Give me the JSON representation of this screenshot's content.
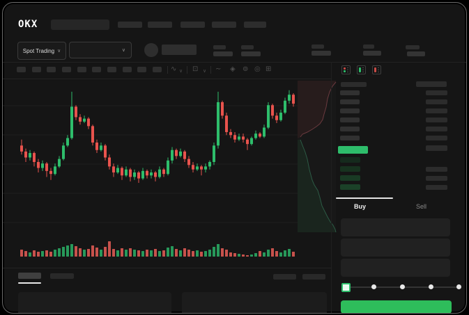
{
  "window": {
    "bg": "#000000",
    "app_bg": "#151515",
    "frame_border": "#6a6a6a"
  },
  "colors": {
    "candle_green": "#2ebd6b",
    "candle_red": "#e8534d",
    "volume_green": "#27995a",
    "volume_red": "#c7524c",
    "depth_ask_line": "#6b3a3f",
    "depth_bid_line": "#2c5a45",
    "price_highlight_green": "#2ebd6b",
    "buy_button_green": "#2ebd5b",
    "active_text": "#f0f0f0",
    "dim_text": "#8a8a8a"
  },
  "header": {
    "logo_text": "OKX",
    "nav_placeholder_count": 5,
    "has_search_placeholder": true
  },
  "market_bar": {
    "mode_selector_label": "Spot Trading",
    "mode_selector_chevron": "∨",
    "pair_selector_chevron": "∨",
    "stat_pair_count": 5
  },
  "toolbar": {
    "interval_placeholder_count": 10,
    "icons": [
      {
        "name": "candle-style-icon",
        "glyph": "∿"
      },
      {
        "name": "chevron-down-icon",
        "glyph": "∨"
      },
      {
        "name": "indicator-icon",
        "glyph": "⊡"
      },
      {
        "name": "chevron-down-icon",
        "glyph": "∨"
      },
      {
        "name": "line-tool-icon",
        "glyph": "∼"
      },
      {
        "name": "compare-icon",
        "glyph": "◈"
      },
      {
        "name": "camera-icon",
        "glyph": "⊚"
      },
      {
        "name": "settings-icon",
        "glyph": "◎"
      },
      {
        "name": "fullscreen-icon",
        "glyph": "⊞"
      }
    ]
  },
  "order_book": {
    "view_mode_icons": [
      "split-book-view",
      "bids-only-view",
      "asks-only-view"
    ],
    "has_header_row": true,
    "ask_level_count": 6,
    "bid_level_count": 4,
    "bid_bar_colors": [
      "#152a1d",
      "#17321f",
      "#193a24",
      "#1b4128"
    ],
    "current_price_highlighted": true
  },
  "trade_panel": {
    "tabs": [
      {
        "label": "Buy",
        "active": true
      },
      {
        "label": "Sell",
        "active": false
      }
    ],
    "field_count": 3,
    "slider": {
      "stop_count": 5,
      "active_stop_index": 0
    },
    "submit_button_label": ""
  },
  "bottom_section": {
    "tab_placeholder_count": 2,
    "active_tab_index": 0,
    "right_placeholder_count": 2,
    "panel_count": 2
  },
  "chart_data": {
    "type": "candlestick",
    "title": "",
    "xlabel": "",
    "ylabel": "",
    "note": "wireframe trading mockup; no axis tick labels visible; OHLC normalized 0-100 of pane height",
    "ylim": [
      0,
      100
    ],
    "grid": true,
    "candles_ohcl_as_o_c_h_l": [
      [
        58,
        54,
        62,
        52
      ],
      [
        54,
        50,
        56,
        47
      ],
      [
        50,
        53,
        55,
        48
      ],
      [
        53,
        47,
        54,
        44
      ],
      [
        47,
        43,
        49,
        40
      ],
      [
        43,
        46,
        48,
        41
      ],
      [
        46,
        41,
        47,
        37
      ],
      [
        41,
        39,
        43,
        35
      ],
      [
        39,
        44,
        46,
        38
      ],
      [
        44,
        49,
        51,
        43
      ],
      [
        49,
        58,
        60,
        48
      ],
      [
        58,
        63,
        65,
        57
      ],
      [
        63,
        84,
        94,
        62
      ],
      [
        84,
        77,
        85,
        75
      ],
      [
        77,
        74,
        79,
        72
      ],
      [
        74,
        76,
        78,
        73
      ],
      [
        76,
        71,
        77,
        69
      ],
      [
        71,
        60,
        72,
        58
      ],
      [
        60,
        55,
        62,
        53
      ],
      [
        55,
        58,
        60,
        54
      ],
      [
        58,
        50,
        59,
        48
      ],
      [
        50,
        44,
        52,
        42
      ],
      [
        44,
        40,
        46,
        37
      ],
      [
        40,
        43,
        45,
        39
      ],
      [
        43,
        38,
        44,
        35
      ],
      [
        38,
        42,
        44,
        37
      ],
      [
        42,
        37,
        43,
        34
      ],
      [
        37,
        40,
        42,
        35
      ],
      [
        40,
        36,
        41,
        33
      ],
      [
        36,
        41,
        43,
        35
      ],
      [
        41,
        38,
        42,
        36
      ],
      [
        38,
        40,
        42,
        36
      ],
      [
        40,
        37,
        41,
        34
      ],
      [
        37,
        42,
        44,
        36
      ],
      [
        42,
        39,
        43,
        37
      ],
      [
        39,
        48,
        50,
        38
      ],
      [
        48,
        55,
        57,
        46
      ],
      [
        55,
        51,
        56,
        49
      ],
      [
        51,
        54,
        56,
        50
      ],
      [
        54,
        49,
        55,
        47
      ],
      [
        49,
        45,
        51,
        43
      ],
      [
        45,
        42,
        47,
        40
      ],
      [
        42,
        44,
        46,
        41
      ],
      [
        44,
        42,
        45,
        38
      ],
      [
        42,
        44,
        46,
        40
      ],
      [
        44,
        47,
        48,
        42
      ],
      [
        47,
        58,
        60,
        45
      ],
      [
        58,
        87,
        94,
        56
      ],
      [
        87,
        78,
        88,
        76
      ],
      [
        78,
        67,
        80,
        65
      ],
      [
        67,
        65,
        69,
        63
      ],
      [
        65,
        62,
        67,
        60
      ],
      [
        62,
        64,
        66,
        61
      ],
      [
        64,
        62,
        66,
        60
      ],
      [
        62,
        59,
        63,
        55
      ],
      [
        59,
        63,
        64,
        58
      ],
      [
        63,
        66,
        68,
        62
      ],
      [
        66,
        64,
        67,
        63
      ],
      [
        64,
        70,
        72,
        63
      ],
      [
        70,
        85,
        87,
        69
      ],
      [
        85,
        78,
        86,
        76
      ],
      [
        78,
        75,
        80,
        73
      ],
      [
        75,
        80,
        82,
        74
      ],
      [
        80,
        88,
        90,
        79
      ],
      [
        88,
        92,
        95,
        86
      ],
      [
        92,
        86,
        93,
        84
      ]
    ],
    "volume": [
      10,
      8,
      6,
      9,
      7,
      8,
      9,
      7,
      10,
      12,
      14,
      16,
      18,
      15,
      12,
      10,
      11,
      16,
      13,
      10,
      14,
      22,
      11,
      9,
      12,
      10,
      12,
      10,
      9,
      8,
      10,
      9,
      11,
      8,
      9,
      13,
      15,
      11,
      9,
      12,
      10,
      8,
      9,
      7,
      8,
      10,
      14,
      18,
      12,
      10,
      6,
      5,
      4,
      3,
      2,
      3,
      5,
      8,
      6,
      10,
      12,
      8,
      6,
      9,
      11,
      7
    ],
    "depth_overlay": {
      "asks_curve": [
        [
          55,
          2
        ],
        [
          50,
          8
        ],
        [
          46,
          16
        ],
        [
          43,
          26
        ],
        [
          41,
          38
        ],
        [
          38,
          48
        ],
        [
          36,
          56
        ],
        [
          32,
          62
        ],
        [
          27,
          66
        ],
        [
          21,
          70
        ],
        [
          14,
          74
        ],
        [
          7,
          77
        ],
        [
          4,
          81
        ]
      ],
      "bids_curve": [
        [
          4,
          85
        ],
        [
          7,
          93
        ],
        [
          11,
          103
        ],
        [
          14,
          113
        ],
        [
          17,
          128
        ],
        [
          21,
          143
        ],
        [
          24,
          150
        ],
        [
          29,
          158
        ],
        [
          32,
          168
        ],
        [
          35,
          180
        ],
        [
          39,
          188
        ],
        [
          43,
          196
        ],
        [
          47,
          203
        ],
        [
          51,
          208
        ],
        [
          54,
          214
        ],
        [
          55,
          218
        ]
      ]
    }
  }
}
